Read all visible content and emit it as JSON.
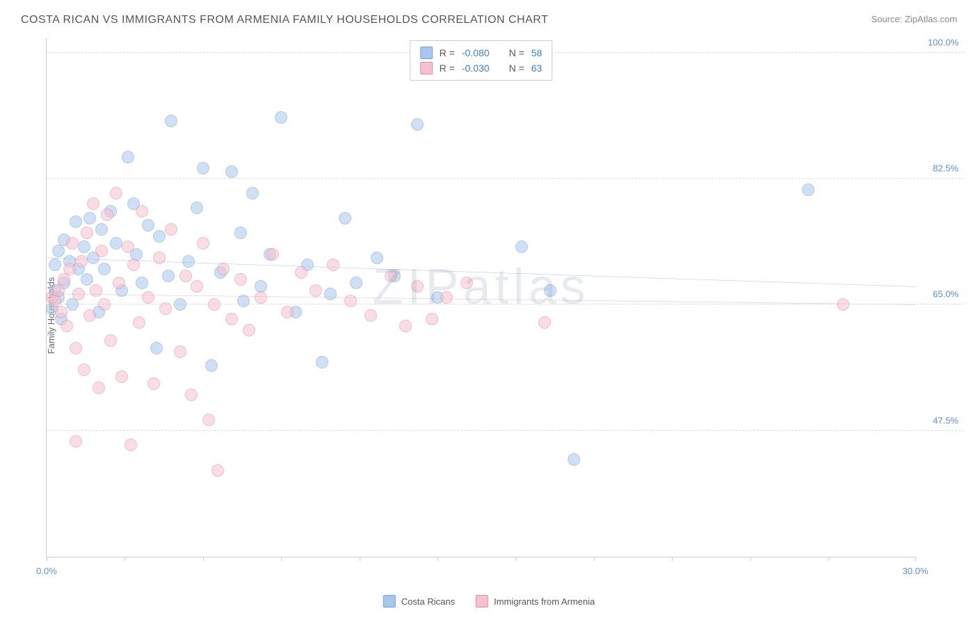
{
  "header": {
    "title": "COSTA RICAN VS IMMIGRANTS FROM ARMENIA FAMILY HOUSEHOLDS CORRELATION CHART",
    "source_prefix": "Source: ",
    "source_name": "ZipAtlas.com"
  },
  "chart": {
    "type": "scatter",
    "ylabel": "Family Households",
    "watermark": "ZIPatlas",
    "background_color": "#ffffff",
    "grid_color": "#dddddd",
    "axis_color": "#cccccc",
    "xlim": [
      0,
      30
    ],
    "ylim": [
      30,
      102
    ],
    "xtick_positions": [
      0,
      2.7,
      5.4,
      8.1,
      10.8,
      13.5,
      16.2,
      18.9,
      21.6,
      24.3,
      27,
      30
    ],
    "xtick_labels": {
      "first": "0.0%",
      "last": "30.0%"
    },
    "ytick_positions": [
      47.5,
      65.0,
      82.5,
      100.0
    ],
    "ytick_labels": [
      "47.5%",
      "65.0%",
      "82.5%",
      "100.0%"
    ],
    "ytick_color": "#5b8fd6",
    "xtick_color": "#5b8fd6",
    "marker_radius": 9,
    "marker_opacity": 0.55,
    "marker_stroke_width": 1,
    "series": [
      {
        "id": "costa_ricans",
        "label": "Costa Ricans",
        "fill_color": "#a9c7ec",
        "stroke_color": "#6fa3de",
        "trend_color": "#3b7dd8",
        "trend_width": 2,
        "trend": {
          "x1": 0,
          "y1": 71.5,
          "x2": 30,
          "y2": 67.5
        },
        "stats": {
          "R": "-0.080",
          "N": "58"
        },
        "points": [
          [
            0.2,
            64.5
          ],
          [
            0.3,
            67.0
          ],
          [
            0.3,
            70.5
          ],
          [
            0.4,
            66.0
          ],
          [
            0.4,
            72.5
          ],
          [
            0.5,
            63.0
          ],
          [
            0.6,
            68.0
          ],
          [
            0.6,
            74.0
          ],
          [
            0.8,
            71.0
          ],
          [
            0.9,
            65.0
          ],
          [
            1.0,
            76.5
          ],
          [
            1.1,
            70.0
          ],
          [
            1.3,
            73.0
          ],
          [
            1.4,
            68.5
          ],
          [
            1.5,
            77.0
          ],
          [
            1.6,
            71.5
          ],
          [
            1.8,
            64.0
          ],
          [
            1.9,
            75.5
          ],
          [
            2.0,
            70.0
          ],
          [
            2.2,
            78.0
          ],
          [
            2.4,
            73.5
          ],
          [
            2.6,
            67.0
          ],
          [
            2.8,
            85.5
          ],
          [
            3.0,
            79.0
          ],
          [
            3.1,
            72.0
          ],
          [
            3.3,
            68.0
          ],
          [
            3.5,
            76.0
          ],
          [
            3.8,
            59.0
          ],
          [
            3.9,
            74.5
          ],
          [
            4.2,
            69.0
          ],
          [
            4.3,
            90.5
          ],
          [
            4.6,
            65.0
          ],
          [
            4.9,
            71.0
          ],
          [
            5.2,
            78.5
          ],
          [
            5.4,
            84.0
          ],
          [
            5.7,
            56.5
          ],
          [
            6.0,
            69.5
          ],
          [
            6.4,
            83.5
          ],
          [
            6.7,
            75.0
          ],
          [
            6.8,
            65.5
          ],
          [
            7.1,
            80.5
          ],
          [
            7.4,
            67.5
          ],
          [
            7.7,
            72.0
          ],
          [
            8.1,
            91.0
          ],
          [
            8.6,
            64.0
          ],
          [
            9.0,
            70.5
          ],
          [
            9.5,
            57.0
          ],
          [
            9.8,
            66.5
          ],
          [
            10.3,
            77.0
          ],
          [
            10.7,
            68.0
          ],
          [
            11.4,
            71.5
          ],
          [
            12.0,
            69.0
          ],
          [
            12.8,
            90.0
          ],
          [
            13.5,
            66.0
          ],
          [
            16.4,
            73.0
          ],
          [
            17.4,
            67.0
          ],
          [
            18.2,
            43.5
          ],
          [
            26.3,
            81.0
          ]
        ]
      },
      {
        "id": "immigrants_armenia",
        "label": "Immigrants from Armenia",
        "fill_color": "#f4c2ce",
        "stroke_color": "#e88aa0",
        "trend_color": "#e05a82",
        "trend_width": 2,
        "trend": {
          "x1": 0,
          "y1": 66.5,
          "x2": 30,
          "y2": 65.0
        },
        "stats": {
          "R": "-0.030",
          "N": "63"
        },
        "points": [
          [
            0.2,
            66.0
          ],
          [
            0.3,
            65.5
          ],
          [
            0.4,
            67.0
          ],
          [
            0.5,
            64.0
          ],
          [
            0.6,
            68.5
          ],
          [
            0.7,
            62.0
          ],
          [
            0.8,
            70.0
          ],
          [
            0.9,
            73.5
          ],
          [
            1.0,
            59.0
          ],
          [
            1.1,
            66.5
          ],
          [
            1.2,
            71.0
          ],
          [
            1.3,
            56.0
          ],
          [
            1.4,
            75.0
          ],
          [
            1.5,
            63.5
          ],
          [
            1.6,
            79.0
          ],
          [
            1.7,
            67.0
          ],
          [
            1.8,
            53.5
          ],
          [
            1.9,
            72.5
          ],
          [
            2.0,
            65.0
          ],
          [
            2.1,
            77.5
          ],
          [
            2.2,
            60.0
          ],
          [
            2.4,
            80.5
          ],
          [
            2.5,
            68.0
          ],
          [
            2.6,
            55.0
          ],
          [
            2.8,
            73.0
          ],
          [
            2.9,
            45.5
          ],
          [
            3.0,
            70.5
          ],
          [
            3.2,
            62.5
          ],
          [
            3.3,
            78.0
          ],
          [
            3.5,
            66.0
          ],
          [
            3.7,
            54.0
          ],
          [
            3.9,
            71.5
          ],
          [
            4.1,
            64.5
          ],
          [
            4.3,
            75.5
          ],
          [
            4.6,
            58.5
          ],
          [
            4.8,
            69.0
          ],
          [
            5.0,
            52.5
          ],
          [
            5.2,
            67.5
          ],
          [
            5.4,
            73.5
          ],
          [
            5.6,
            49.0
          ],
          [
            5.8,
            65.0
          ],
          [
            5.9,
            42.0
          ],
          [
            6.1,
            70.0
          ],
          [
            6.4,
            63.0
          ],
          [
            6.7,
            68.5
          ],
          [
            7.0,
            61.5
          ],
          [
            7.4,
            66.0
          ],
          [
            7.8,
            72.0
          ],
          [
            8.3,
            64.0
          ],
          [
            8.8,
            69.5
          ],
          [
            9.3,
            67.0
          ],
          [
            9.9,
            70.5
          ],
          [
            10.5,
            65.5
          ],
          [
            11.2,
            63.5
          ],
          [
            11.9,
            69.0
          ],
          [
            12.4,
            62.0
          ],
          [
            12.8,
            67.5
          ],
          [
            13.3,
            63.0
          ],
          [
            13.8,
            66.0
          ],
          [
            14.5,
            68.0
          ],
          [
            17.2,
            62.5
          ],
          [
            27.5,
            65.0
          ],
          [
            1.0,
            46.0
          ]
        ]
      }
    ]
  },
  "legend_stats": {
    "r_label": "R =",
    "n_label": "N ="
  }
}
